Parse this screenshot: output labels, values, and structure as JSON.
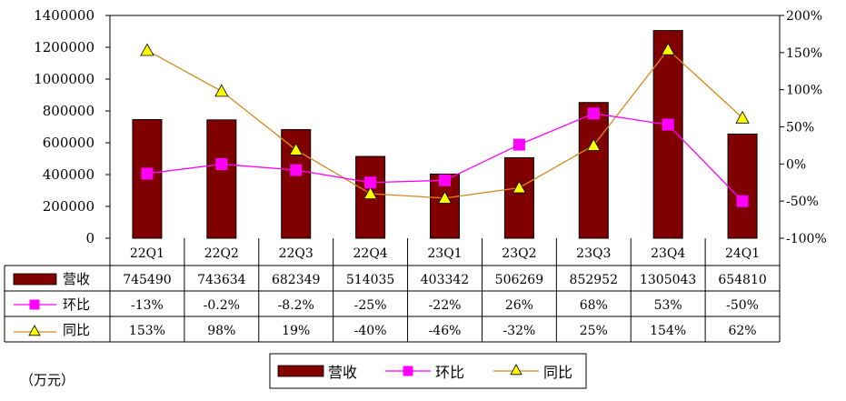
{
  "unit_label": "（万元）",
  "colors": {
    "bar": "#800000",
    "huanbi": "#ff00ff",
    "tongbi_line": "#d88a1e",
    "tongbi_marker": "#ffff00"
  },
  "chart_data": {
    "type": "bar",
    "categories": [
      "22Q1",
      "22Q2",
      "22Q3",
      "22Q4",
      "23Q1",
      "23Q2",
      "23Q3",
      "23Q4",
      "24Q1"
    ],
    "left_axis": {
      "ylim": [
        0,
        1400000
      ],
      "ticks": [
        "0",
        "200000",
        "400000",
        "600000",
        "800000",
        "1000000",
        "1200000",
        "1400000"
      ]
    },
    "right_axis": {
      "ylim": [
        -100,
        200
      ],
      "ticks": [
        "-100%",
        "-50%",
        "0%",
        "50%",
        "100%",
        "150%",
        "200%"
      ]
    },
    "series": [
      {
        "name": "营收",
        "type": "bar",
        "axis": "left",
        "values": [
          745490,
          743634,
          682349,
          514035,
          403342,
          506269,
          852952,
          1305043,
          654810
        ],
        "labels": [
          "745490",
          "743634",
          "682349",
          "514035",
          "403342",
          "506269",
          "852952",
          "1305043",
          "654810"
        ]
      },
      {
        "name": "环比",
        "type": "line",
        "axis": "right",
        "marker": "square",
        "values": [
          -13,
          -0.2,
          -8.2,
          -25,
          -22,
          26,
          68,
          53,
          -50
        ],
        "labels": [
          "-13%",
          "-0.2%",
          "-8.2%",
          "-25%",
          "-22%",
          "26%",
          "68%",
          "53%",
          "-50%"
        ]
      },
      {
        "name": "同比",
        "type": "line",
        "axis": "right",
        "marker": "triangle",
        "values": [
          153,
          98,
          19,
          -40,
          -46,
          -32,
          25,
          154,
          62
        ],
        "labels": [
          "153%",
          "98%",
          "19%",
          "-40%",
          "-46%",
          "-32%",
          "25%",
          "154%",
          "62%"
        ]
      }
    ],
    "legend": {
      "position": "bottom",
      "items": [
        "营收",
        "环比",
        "同比"
      ]
    },
    "grid": false
  }
}
